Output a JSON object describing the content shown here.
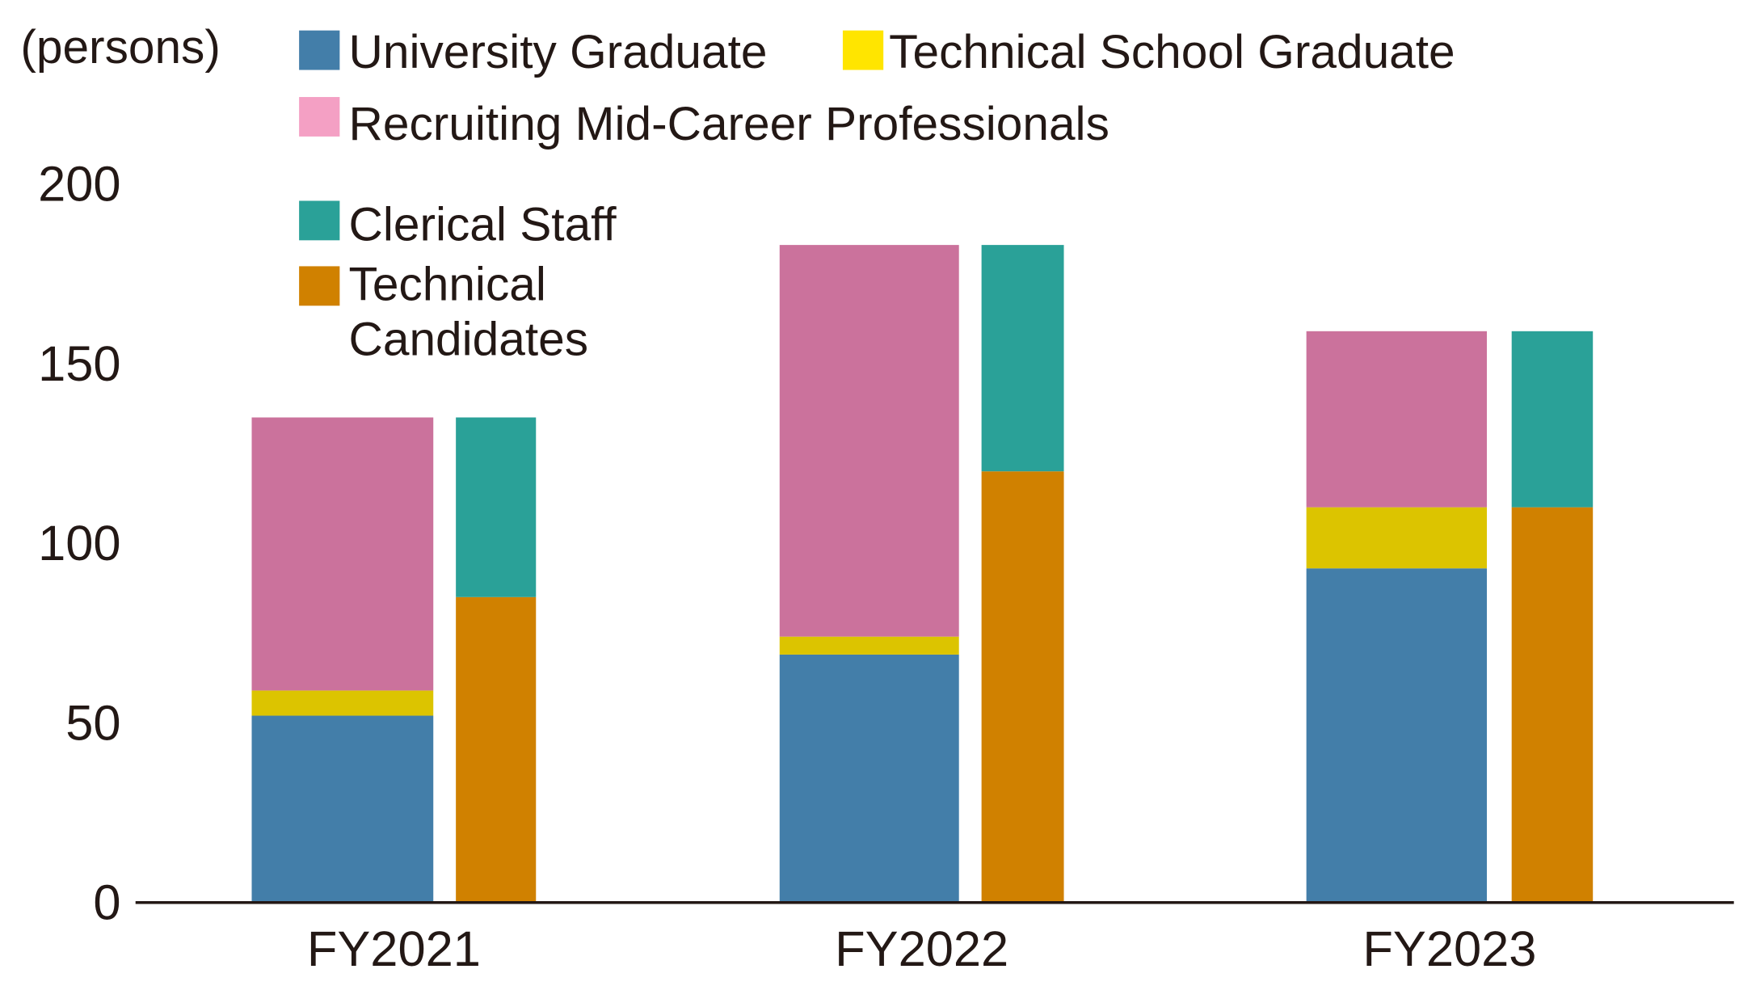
{
  "chart_data": {
    "type": "bar",
    "stacked": true,
    "unit_label": "(persons)",
    "categories": [
      "FY2021",
      "FY2022",
      "FY2023"
    ],
    "ylim": [
      0,
      200
    ],
    "yticks": [
      0,
      50,
      100,
      150,
      200
    ],
    "grid": false,
    "legend_placement": "top-left",
    "stacks": [
      {
        "stack": "left",
        "series": [
          {
            "name": "University Graduate",
            "color": "#437ea9",
            "values": [
              52,
              69,
              93
            ]
          },
          {
            "name": "Technical School Graduate",
            "color": "#dcc400",
            "legend_color": "#ffe500",
            "values": [
              7,
              5,
              17
            ]
          },
          {
            "name": "Recruiting Mid-Career Professionals",
            "color": "#cb729c",
            "legend_color": "#f4a0c4",
            "values": [
              76,
              109,
              49
            ]
          }
        ]
      },
      {
        "stack": "right",
        "series": [
          {
            "name": "Technical Candidates",
            "color": "#d08100",
            "values": [
              85,
              120,
              110
            ]
          },
          {
            "name": "Clerical Staff",
            "color": "#2aa198",
            "values": [
              50,
              63,
              49
            ]
          }
        ]
      }
    ],
    "legend": [
      {
        "label": "University Graduate",
        "color": "#437ea9"
      },
      {
        "label": "Technical School Graduate",
        "color": "#ffe500"
      },
      {
        "label": "Recruiting Mid-Career Professionals",
        "color": "#f4a0c4"
      },
      {
        "label": "Clerical Staff",
        "color": "#2aa198"
      },
      {
        "label_lines": [
          "Technical",
          "Candidates"
        ],
        "color": "#d08100"
      }
    ]
  }
}
